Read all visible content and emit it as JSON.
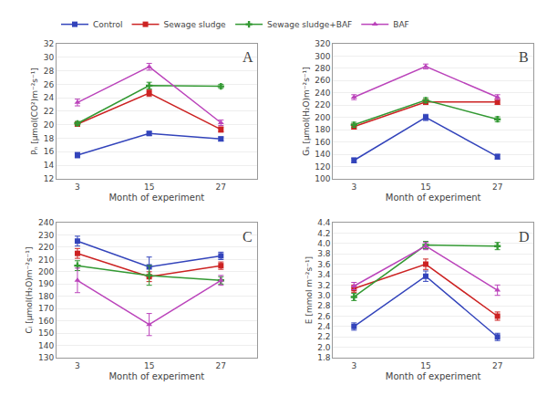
{
  "chart_data": [
    {
      "type": "line",
      "title": "A",
      "xlabel": "Month of experiment",
      "ylabel": "Pₙ [μmol(CO²)m⁻²s⁻¹]",
      "x": [
        3,
        15,
        27
      ],
      "xlim": [
        -0.5,
        33
      ],
      "xticks": [
        3,
        15,
        27
      ],
      "ylim": [
        12,
        32
      ],
      "yticks": [
        12,
        14,
        16,
        18,
        20,
        22,
        24,
        26,
        28,
        30,
        32
      ],
      "grid": "y",
      "legend": "upper left",
      "series": [
        {
          "name": "Control",
          "color": "#3344bb",
          "marker": "square",
          "values": [
            15.5,
            18.7,
            17.9
          ],
          "errors": [
            0.4,
            0.3,
            0.3
          ]
        },
        {
          "name": "Sewage sludge",
          "color": "#cc2222",
          "marker": "square",
          "values": [
            20.1,
            24.7,
            19.3
          ],
          "errors": [
            0.3,
            0.5,
            0.4
          ]
        },
        {
          "name": "Sewage sludge+BAF",
          "color": "#339933",
          "marker": "plus",
          "values": [
            20.2,
            25.8,
            25.7
          ],
          "errors": [
            0.3,
            0.5,
            0.3
          ]
        },
        {
          "name": "BAF",
          "color": "#bb44bb",
          "marker": "triangle",
          "values": [
            23.3,
            28.6,
            20.3
          ],
          "errors": [
            0.5,
            0.5,
            0.4
          ]
        }
      ]
    },
    {
      "type": "line",
      "title": "B",
      "xlabel": "Month of experiment",
      "ylabel": "Gₛ [μmol(H₂O)m⁻²s⁻¹]",
      "x": [
        3,
        15,
        27
      ],
      "xlim": [
        -0.5,
        33
      ],
      "xticks": [
        3,
        15,
        27
      ],
      "ylim": [
        100,
        320
      ],
      "yticks": [
        100,
        120,
        140,
        160,
        180,
        200,
        220,
        240,
        260,
        280,
        300,
        320
      ],
      "grid": "y",
      "series": [
        {
          "name": "Control",
          "color": "#3344bb",
          "marker": "square",
          "values": [
            130,
            200,
            136
          ],
          "errors": [
            4,
            5,
            4
          ]
        },
        {
          "name": "Sewage sludge",
          "color": "#cc2222",
          "marker": "square",
          "values": [
            185,
            225,
            225
          ],
          "errors": [
            4,
            4,
            4
          ]
        },
        {
          "name": "Sewage sludge+BAF",
          "color": "#339933",
          "marker": "plus",
          "values": [
            188,
            228,
            197
          ],
          "errors": [
            4,
            4,
            4
          ]
        },
        {
          "name": "BAF",
          "color": "#bb44bb",
          "marker": "triangle",
          "values": [
            233,
            283,
            233
          ],
          "errors": [
            4,
            4,
            4
          ]
        }
      ]
    },
    {
      "type": "line",
      "title": "C",
      "xlabel": "Month of experiment",
      "ylabel": "Cᵢ [μmol(H₂O)m⁻²s⁻¹]",
      "x": [
        3,
        15,
        27
      ],
      "xlim": [
        -0.5,
        33
      ],
      "xticks": [
        3,
        15,
        27
      ],
      "ylim": [
        130,
        240
      ],
      "yticks": [
        130,
        140,
        150,
        160,
        170,
        180,
        190,
        200,
        210,
        220,
        230,
        240
      ],
      "grid": "y",
      "series": [
        {
          "name": "Control",
          "color": "#3344bb",
          "marker": "square",
          "values": [
            225,
            204,
            213
          ],
          "errors": [
            4,
            8,
            3
          ]
        },
        {
          "name": "Sewage sludge",
          "color": "#cc2222",
          "marker": "square",
          "values": [
            215,
            196,
            205
          ],
          "errors": [
            4,
            4,
            3
          ]
        },
        {
          "name": "Sewage sludge+BAF",
          "color": "#339933",
          "marker": "plus",
          "values": [
            205,
            197,
            193
          ],
          "errors": [
            4,
            8,
            3
          ]
        },
        {
          "name": "BAF",
          "color": "#bb44bb",
          "marker": "triangle",
          "values": [
            193,
            157,
            193
          ],
          "errors": [
            10,
            9,
            4
          ]
        }
      ]
    },
    {
      "type": "line",
      "title": "D",
      "xlabel": "Month of experiment",
      "ylabel": "E [mmol m⁻²s⁻¹]",
      "x": [
        3,
        15,
        27
      ],
      "xlim": [
        -0.5,
        33
      ],
      "xticks": [
        3,
        15,
        27
      ],
      "ylim": [
        1.8,
        4.4
      ],
      "yticks": [
        1.8,
        {
          "value": 2.0,
          "label": "2.0"
        },
        2.2,
        2.4,
        2.6,
        2.8,
        {
          "value": 3.0,
          "label": "3.0"
        },
        3.2,
        3.4,
        3.6,
        3.8,
        {
          "value": 4.0,
          "label": "4.0"
        },
        4.2,
        4.4
      ],
      "grid": "y",
      "series": [
        {
          "name": "Control",
          "color": "#3344bb",
          "marker": "square",
          "values": [
            2.4,
            3.37,
            2.2
          ],
          "errors": [
            0.07,
            0.1,
            0.07
          ]
        },
        {
          "name": "Sewage sludge",
          "color": "#cc2222",
          "marker": "square",
          "values": [
            3.13,
            3.6,
            2.6
          ],
          "errors": [
            0.07,
            0.1,
            0.08
          ]
        },
        {
          "name": "Sewage sludge+BAF",
          "color": "#339933",
          "marker": "plus",
          "values": [
            2.97,
            3.97,
            3.95
          ],
          "errors": [
            0.07,
            0.07,
            0.07
          ]
        },
        {
          "name": "BAF",
          "color": "#bb44bb",
          "marker": "triangle",
          "values": [
            3.18,
            3.95,
            3.1
          ],
          "errors": [
            0.07,
            0.07,
            0.1
          ]
        }
      ]
    }
  ]
}
